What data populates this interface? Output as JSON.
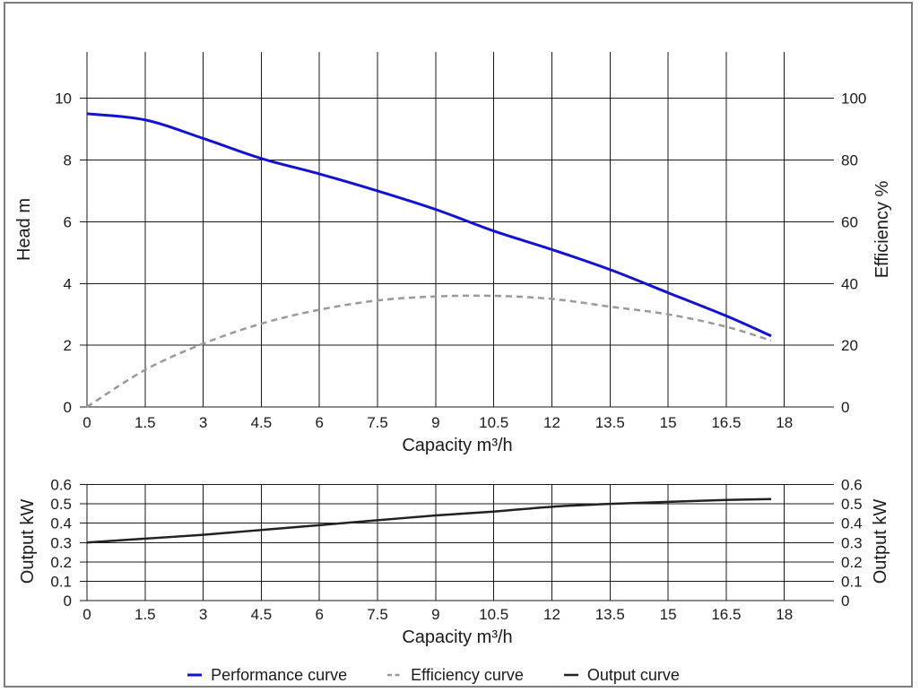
{
  "frame": {
    "border_color": "#7e7e7e",
    "background": "#ffffff"
  },
  "colors": {
    "grid": "#1a1a1a",
    "text": "#1a1a1a",
    "performance": "#1212cf",
    "efficiency": "#999999",
    "output": "#222222"
  },
  "legend": {
    "items": [
      {
        "label": "Performance curve",
        "color": "#1212cf",
        "dash": "none",
        "thickness": 3
      },
      {
        "label": "Efficiency curve",
        "color": "#999999",
        "dash": "5 3.5",
        "thickness": 2.5
      },
      {
        "label": "Output curve",
        "color": "#222222",
        "dash": "none",
        "thickness": 2.5
      }
    ]
  },
  "chart_data": [
    {
      "type": "line",
      "title": "",
      "xlabel": "Capacity m³/h",
      "ylabel_left": "Head m",
      "ylabel_right": "Efficiency %",
      "xlim": [
        0,
        19.28
      ],
      "ylim_left": [
        0,
        11.5
      ],
      "ylim_right": [
        0,
        115
      ],
      "grid": true,
      "legend_position": "bottom",
      "xticks": {
        "values": [
          0,
          1.5,
          3,
          4.5,
          6,
          7.5,
          9,
          10.5,
          12,
          13.5,
          15,
          16.5,
          18
        ],
        "labels": [
          "0",
          "1.5",
          "3",
          "4.5",
          "6",
          "7.5",
          "9",
          "10.5",
          "12",
          "13.5",
          "15",
          "16.5",
          "18"
        ]
      },
      "yticks_left": {
        "values": [
          0,
          2,
          4,
          6,
          8,
          10
        ],
        "labels": [
          "0",
          "2",
          "4",
          "6",
          "8",
          "10"
        ]
      },
      "yticks_right": {
        "values": [
          0,
          20,
          40,
          60,
          80,
          100
        ],
        "labels": [
          "0",
          "20",
          "40",
          "60",
          "80",
          "100"
        ]
      },
      "x": [
        0,
        1.5,
        3,
        4.5,
        6,
        7.5,
        9,
        10.5,
        12,
        13.5,
        15,
        16.5,
        17.66
      ],
      "series": [
        {
          "name": "Performance curve",
          "axis": "left",
          "unit": "m",
          "color": "#1212cf",
          "width": 3,
          "dash": "none",
          "values": [
            9.5,
            9.3,
            8.7,
            8.05,
            7.55,
            7.0,
            6.4,
            5.7,
            5.1,
            4.45,
            3.7,
            2.95,
            2.3
          ]
        },
        {
          "name": "Efficiency curve",
          "axis": "right",
          "unit": "%",
          "color": "#999999",
          "width": 2.5,
          "dash": "7 5",
          "values": [
            0,
            12,
            20.5,
            27,
            31.5,
            34.5,
            35.8,
            36,
            35,
            32.5,
            30,
            26,
            21.5
          ]
        }
      ]
    },
    {
      "type": "line",
      "title": "",
      "xlabel": "Capacity m³/h",
      "ylabel_left": "Output kW",
      "ylabel_right": "Output kW",
      "xlim": [
        0,
        19.28
      ],
      "ylim_left": [
        0,
        0.6
      ],
      "ylim_right": [
        0,
        0.6
      ],
      "grid": true,
      "xticks": {
        "values": [
          0,
          1.5,
          3,
          4.5,
          6,
          7.5,
          9,
          10.5,
          12,
          13.5,
          15,
          16.5,
          18
        ],
        "labels": [
          "0",
          "1.5",
          "3",
          "4.5",
          "6",
          "7.5",
          "9",
          "10.5",
          "12",
          "13.5",
          "15",
          "16.5",
          "18"
        ]
      },
      "yticks_left": {
        "values": [
          0,
          0.1,
          0.2,
          0.3,
          0.4,
          0.5,
          0.6
        ],
        "labels": [
          "0",
          "0.1",
          "0.2",
          "0.3",
          "0.4",
          "0.5",
          "0.6"
        ]
      },
      "yticks_right": {
        "values": [
          0,
          0.1,
          0.2,
          0.3,
          0.4,
          0.5,
          0.6
        ],
        "labels": [
          "0",
          "0.1",
          "0.2",
          "0.3",
          "0.4",
          "0.5",
          "0.6"
        ]
      },
      "x": [
        0,
        1.5,
        3,
        4.5,
        6,
        7.5,
        9,
        10.5,
        12,
        13.5,
        15,
        16.5,
        17.66
      ],
      "series": [
        {
          "name": "Output curve",
          "axis": "left",
          "unit": "kW",
          "color": "#222222",
          "width": 2.5,
          "dash": "none",
          "values": [
            0.3,
            0.32,
            0.34,
            0.365,
            0.39,
            0.415,
            0.44,
            0.46,
            0.485,
            0.5,
            0.51,
            0.52,
            0.525
          ]
        }
      ]
    }
  ]
}
